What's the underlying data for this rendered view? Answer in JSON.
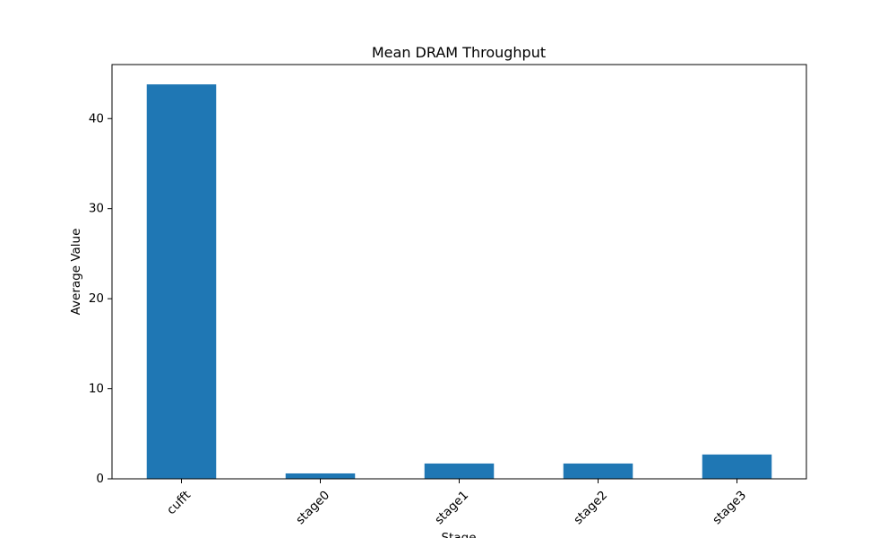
{
  "chart_data": {
    "type": "bar",
    "title": "Mean DRAM Throughput",
    "xlabel": "Stage",
    "ylabel": "Average Value",
    "categories": [
      "cufft",
      "stage0",
      "stage1",
      "stage2",
      "stage3"
    ],
    "values": [
      43.8,
      0.6,
      1.7,
      1.7,
      2.7
    ],
    "ylim": [
      0,
      46
    ],
    "yticks": [
      0,
      10,
      20,
      30,
      40
    ],
    "grid": false,
    "legend": "none",
    "x_tick_rotation_deg": 45,
    "bar_color": "#1f77b4"
  }
}
